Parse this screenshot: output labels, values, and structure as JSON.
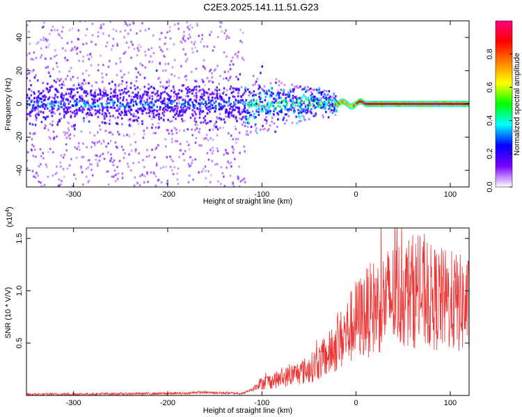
{
  "title": "C2E3.2025.141.11.51.G23",
  "chart_data": [
    {
      "type": "heatmap",
      "xlabel": "Height of straight line (km)",
      "ylabel": "Frequency (Hz)",
      "xlim": [
        -350,
        120
      ],
      "ylim": [
        -50,
        50
      ],
      "xticks": [
        -300,
        -200,
        -100,
        0,
        100
      ],
      "yticks": [
        -40,
        -20,
        0,
        20,
        40
      ],
      "colorbar": {
        "label": "Normalized spectral amplitude",
        "range": [
          0.0,
          1.0
        ],
        "ticks": [
          "0.0",
          "0.2",
          "0.4",
          "0.6",
          "0.8"
        ],
        "tick_values": [
          0.0,
          0.2,
          0.4,
          0.6,
          0.8
        ],
        "colors": [
          "#ffffff",
          "#7a00ff",
          "#0000ff",
          "#00ffff",
          "#00ff00",
          "#ffff00",
          "#ff8000",
          "#ff0000",
          "#ff0080"
        ]
      },
      "regions": [
        {
          "x_range": [
            -350,
            -120
          ],
          "freq_spread": 50,
          "core_halfwidth": 8,
          "level": 0.15
        },
        {
          "x_range": [
            -120,
            -20
          ],
          "freq_spread": 12,
          "core_halfwidth": 6,
          "level": 0.4
        },
        {
          "x_range": [
            -20,
            120
          ],
          "freq_spread": 2,
          "core_halfwidth": 1,
          "level": 0.9
        }
      ]
    },
    {
      "type": "line",
      "xlabel": "Height of straight line (km)",
      "ylabel": "SNR (10 * V/V)",
      "y_multiplier": "(x10",
      "y_multiplier_exp": "4",
      "y_multiplier_close": ")",
      "xlim": [
        -350,
        120
      ],
      "ylim": [
        0,
        1.6
      ],
      "xticks": [
        -300,
        -200,
        -100,
        0,
        100
      ],
      "yticks": [
        0.5,
        1.0,
        1.5
      ],
      "ytick_labels": [
        "0.5",
        "1.0",
        "1.5"
      ],
      "color": "#ee3333",
      "trend": {
        "x": [
          -350,
          -180,
          -170,
          -120,
          -110,
          -100,
          -80,
          -50,
          -30,
          -10,
          0,
          20,
          40,
          60,
          80,
          100,
          120
        ],
        "y": [
          0.01,
          0.02,
          0.03,
          0.02,
          0.06,
          0.12,
          0.16,
          0.25,
          0.38,
          0.6,
          0.72,
          0.85,
          0.95,
          1.0,
          0.93,
          0.9,
          0.85
        ]
      }
    }
  ]
}
